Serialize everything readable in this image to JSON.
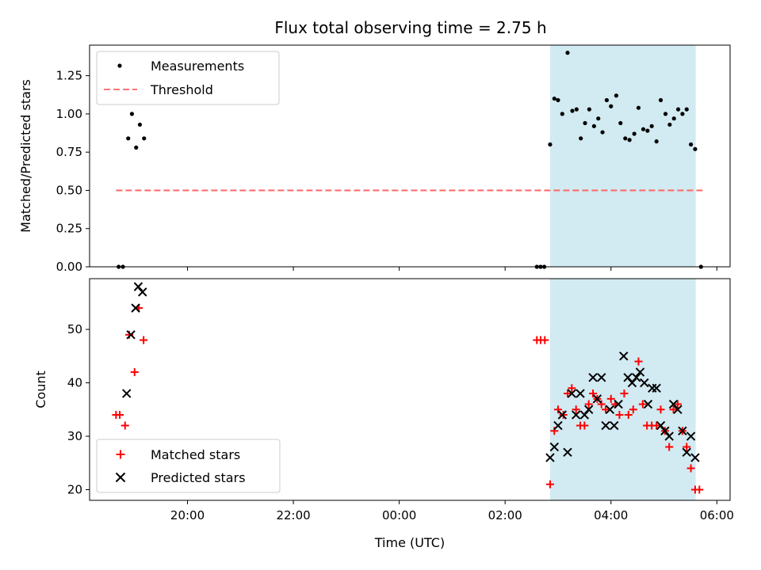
{
  "chart_data": {
    "type": "scatter",
    "title": "Flux total observing time = 2.75 h",
    "xlabel": "Time (UTC)",
    "x_units": "hours relative to 00:00 UTC",
    "x_ticks": [
      {
        "value": -4,
        "label": "20:00"
      },
      {
        "value": -2,
        "label": "22:00"
      },
      {
        "value": 0,
        "label": "00:00"
      },
      {
        "value": 2,
        "label": "02:00"
      },
      {
        "value": 4,
        "label": "04:00"
      },
      {
        "value": 6,
        "label": "06:00"
      }
    ],
    "xlim": [
      -5.85,
      6.25
    ],
    "shaded_interval": {
      "start": 2.85,
      "end": 5.6,
      "color": "#add8e6"
    },
    "top_panel": {
      "ylabel": "Matched/Predicted stars",
      "ylim": [
        0,
        1.45
      ],
      "y_ticks": [
        {
          "value": 0.0,
          "label": "0.00"
        },
        {
          "value": 0.25,
          "label": "0.25"
        },
        {
          "value": 0.5,
          "label": "0.50"
        },
        {
          "value": 0.75,
          "label": "0.75"
        },
        {
          "value": 1.0,
          "label": "1.00"
        },
        {
          "value": 1.25,
          "label": "1.25"
        }
      ],
      "legend": {
        "position": "upper left",
        "measurements_label": "Measurements",
        "threshold_label": "Threshold"
      },
      "threshold": {
        "y": 0.5,
        "x_start": -5.35,
        "x_end": 5.75,
        "color": "#ff6666"
      },
      "measurements": [
        [
          -5.3,
          0.0
        ],
        [
          -5.22,
          0.0
        ],
        [
          -5.12,
          0.84
        ],
        [
          -5.05,
          1.0
        ],
        [
          -4.97,
          0.78
        ],
        [
          -4.9,
          0.93
        ],
        [
          -4.82,
          0.84
        ],
        [
          2.6,
          0.0
        ],
        [
          2.67,
          0.0
        ],
        [
          2.74,
          0.0
        ],
        [
          2.85,
          0.8
        ],
        [
          2.93,
          1.1
        ],
        [
          3.0,
          1.09
        ],
        [
          3.08,
          1.0
        ],
        [
          3.18,
          1.4
        ],
        [
          3.27,
          1.02
        ],
        [
          3.35,
          1.03
        ],
        [
          3.43,
          0.84
        ],
        [
          3.51,
          0.94
        ],
        [
          3.59,
          1.03
        ],
        [
          3.68,
          0.92
        ],
        [
          3.76,
          0.97
        ],
        [
          3.84,
          0.88
        ],
        [
          3.92,
          1.09
        ],
        [
          4.0,
          1.05
        ],
        [
          4.1,
          1.12
        ],
        [
          4.18,
          0.94
        ],
        [
          4.27,
          0.84
        ],
        [
          4.35,
          0.83
        ],
        [
          4.44,
          0.87
        ],
        [
          4.52,
          1.04
        ],
        [
          4.61,
          0.9
        ],
        [
          4.69,
          0.89
        ],
        [
          4.77,
          0.92
        ],
        [
          4.86,
          0.82
        ],
        [
          4.94,
          1.09
        ],
        [
          5.03,
          1.0
        ],
        [
          5.11,
          0.93
        ],
        [
          5.19,
          0.97
        ],
        [
          5.27,
          1.03
        ],
        [
          5.35,
          1.0
        ],
        [
          5.43,
          1.03
        ],
        [
          5.51,
          0.8
        ],
        [
          5.59,
          0.77
        ],
        [
          5.7,
          0.0
        ]
      ]
    },
    "bottom_panel": {
      "ylabel": "Count",
      "ylim": [
        18,
        59.5
      ],
      "y_ticks": [
        {
          "value": 20,
          "label": "20"
        },
        {
          "value": 30,
          "label": "30"
        },
        {
          "value": 40,
          "label": "40"
        },
        {
          "value": 50,
          "label": "50"
        }
      ],
      "legend": {
        "position": "lower left"
      },
      "series": [
        {
          "name": "Matched stars",
          "marker": "plus",
          "color": "#ff0000",
          "points": [
            [
              -5.35,
              34
            ],
            [
              -5.28,
              34
            ],
            [
              -5.18,
              32
            ],
            [
              -5.1,
              49
            ],
            [
              -5.0,
              42
            ],
            [
              -4.92,
              54
            ],
            [
              -4.83,
              48
            ],
            [
              2.6,
              48
            ],
            [
              2.67,
              48
            ],
            [
              2.75,
              48
            ],
            [
              2.85,
              21
            ],
            [
              2.93,
              31
            ],
            [
              3.0,
              35
            ],
            [
              3.1,
              34
            ],
            [
              3.18,
              38
            ],
            [
              3.26,
              39
            ],
            [
              3.34,
              35
            ],
            [
              3.42,
              32
            ],
            [
              3.5,
              32
            ],
            [
              3.58,
              36
            ],
            [
              3.66,
              38
            ],
            [
              3.74,
              37
            ],
            [
              3.82,
              36
            ],
            [
              3.9,
              35
            ],
            [
              4.0,
              37
            ],
            [
              4.08,
              36
            ],
            [
              4.16,
              34
            ],
            [
              4.25,
              38
            ],
            [
              4.33,
              34
            ],
            [
              4.42,
              35
            ],
            [
              4.52,
              44
            ],
            [
              4.6,
              36
            ],
            [
              4.68,
              32
            ],
            [
              4.77,
              32
            ],
            [
              4.86,
              32
            ],
            [
              4.94,
              35
            ],
            [
              5.02,
              31
            ],
            [
              5.1,
              28
            ],
            [
              5.18,
              35
            ],
            [
              5.26,
              36
            ],
            [
              5.35,
              31
            ],
            [
              5.43,
              28
            ],
            [
              5.51,
              24
            ],
            [
              5.59,
              20
            ],
            [
              5.67,
              20
            ]
          ]
        },
        {
          "name": "Predicted stars",
          "marker": "x",
          "color": "#000000",
          "points": [
            [
              -5.15,
              38
            ],
            [
              -5.07,
              49
            ],
            [
              -4.98,
              54
            ],
            [
              -4.93,
              58
            ],
            [
              -4.85,
              57
            ],
            [
              2.85,
              26
            ],
            [
              2.93,
              28
            ],
            [
              3.0,
              32
            ],
            [
              3.08,
              34
            ],
            [
              3.18,
              27
            ],
            [
              3.26,
              38
            ],
            [
              3.34,
              34
            ],
            [
              3.42,
              38
            ],
            [
              3.5,
              34
            ],
            [
              3.58,
              35
            ],
            [
              3.66,
              41
            ],
            [
              3.74,
              37
            ],
            [
              3.82,
              41
            ],
            [
              3.9,
              32
            ],
            [
              3.98,
              35
            ],
            [
              4.06,
              32
            ],
            [
              4.14,
              36
            ],
            [
              4.24,
              45
            ],
            [
              4.32,
              41
            ],
            [
              4.4,
              40
            ],
            [
              4.48,
              41
            ],
            [
              4.55,
              42
            ],
            [
              4.63,
              40
            ],
            [
              4.7,
              36
            ],
            [
              4.78,
              39
            ],
            [
              4.86,
              39
            ],
            [
              4.94,
              32
            ],
            [
              5.02,
              31
            ],
            [
              5.1,
              30
            ],
            [
              5.18,
              36
            ],
            [
              5.26,
              35
            ],
            [
              5.35,
              31
            ],
            [
              5.43,
              27
            ],
            [
              5.51,
              30
            ],
            [
              5.59,
              26
            ]
          ]
        }
      ]
    }
  }
}
